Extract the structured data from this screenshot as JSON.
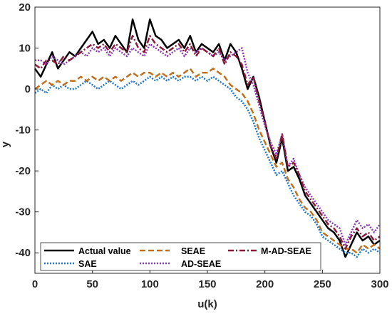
{
  "chart_data": {
    "type": "line",
    "xlabel": "u(k)",
    "ylabel": "y",
    "xlim": [
      0,
      300
    ],
    "ylim": [
      -45,
      20
    ],
    "xticks": [
      0,
      50,
      100,
      150,
      200,
      250,
      300
    ],
    "yticks": [
      -40,
      -30,
      -20,
      -10,
      0,
      10,
      20
    ],
    "grid": false,
    "legend_position": "bottom-left",
    "x": [
      0,
      5,
      10,
      15,
      20,
      25,
      30,
      35,
      40,
      45,
      50,
      55,
      60,
      65,
      70,
      75,
      80,
      85,
      90,
      95,
      100,
      105,
      110,
      115,
      120,
      125,
      130,
      135,
      140,
      145,
      150,
      155,
      160,
      165,
      170,
      175,
      180,
      185,
      190,
      195,
      200,
      205,
      210,
      215,
      220,
      225,
      230,
      235,
      240,
      245,
      250,
      255,
      260,
      265,
      270,
      275,
      280,
      285,
      290,
      295,
      300
    ],
    "series": [
      {
        "name": "Actual value",
        "color": "#000000",
        "dash": "solid",
        "values": [
          5,
          3,
          6,
          9,
          5,
          7,
          9,
          8,
          10,
          12,
          14,
          11,
          12,
          10,
          13,
          11,
          9,
          17,
          12,
          10,
          17,
          13,
          12,
          10,
          11,
          12,
          10,
          13,
          9,
          11,
          10,
          9,
          11,
          7,
          11,
          9,
          5,
          0,
          3,
          -2,
          -8,
          -14,
          -18,
          -12,
          -20,
          -19,
          -22,
          -26,
          -28,
          -30,
          -32,
          -34,
          -35,
          -37,
          -41,
          -38,
          -35,
          -37,
          -36,
          -38,
          -37
        ]
      },
      {
        "name": "SAE",
        "color": "#1f77d0",
        "dash": "dotted",
        "values": [
          -1,
          0,
          -1,
          1,
          0,
          1,
          0,
          0,
          1,
          2,
          1,
          0,
          1,
          2,
          1,
          0,
          1,
          2,
          1,
          2,
          3,
          2,
          3,
          2,
          3,
          2,
          3,
          3,
          2,
          3,
          2,
          3,
          2,
          1,
          0,
          -2,
          -3,
          -5,
          -8,
          -12,
          -15,
          -18,
          -21,
          -20,
          -23,
          -26,
          -28,
          -30,
          -31,
          -33,
          -36,
          -37,
          -38,
          -39,
          -40,
          -40,
          -41,
          -39,
          -40,
          -39,
          -40
        ]
      },
      {
        "name": "SEAE",
        "color": "#c0701c",
        "dash": "dashed",
        "values": [
          0,
          1,
          2,
          1,
          2,
          1,
          2,
          2,
          3,
          2,
          3,
          2,
          3,
          2,
          3,
          2,
          3,
          4,
          3,
          4,
          4,
          3,
          4,
          3,
          4,
          3,
          4,
          5,
          3,
          4,
          4,
          5,
          4,
          3,
          1,
          0,
          -1,
          -3,
          -6,
          -10,
          -13,
          -16,
          -19,
          -18,
          -22,
          -24,
          -27,
          -29,
          -30,
          -32,
          -35,
          -36,
          -37,
          -38,
          -39,
          -39,
          -40,
          -38,
          -39,
          -38,
          -39
        ]
      },
      {
        "name": "AD-SEAE",
        "color": "#8a3ab9",
        "dash": "dotted",
        "values": [
          7,
          7,
          6,
          8,
          7,
          6,
          7,
          8,
          9,
          8,
          10,
          9,
          10,
          8,
          10,
          9,
          8,
          10,
          9,
          8,
          11,
          10,
          9,
          8,
          9,
          10,
          8,
          10,
          9,
          10,
          9,
          8,
          9,
          7,
          8,
          9,
          10,
          4,
          1,
          -4,
          -9,
          -13,
          -16,
          -11,
          -19,
          -17,
          -21,
          -24,
          -26,
          -28,
          -30,
          -32,
          -33,
          -34,
          -38,
          -35,
          -32,
          -34,
          -33,
          -35,
          -33
        ]
      },
      {
        "name": "M-AD-SEAE",
        "color": "#8b1a3a",
        "dash": "dashdot",
        "values": [
          6,
          5,
          7,
          7,
          6,
          8,
          7,
          8,
          9,
          10,
          11,
          10,
          11,
          9,
          11,
          10,
          9,
          13,
          10,
          9,
          13,
          11,
          10,
          9,
          10,
          11,
          9,
          11,
          8,
          10,
          9,
          8,
          10,
          6,
          9,
          8,
          6,
          1,
          3,
          -3,
          -8,
          -14,
          -17,
          -11,
          -19,
          -18,
          -21,
          -25,
          -27,
          -29,
          -31,
          -33,
          -34,
          -36,
          -39,
          -36,
          -34,
          -36,
          -35,
          -37,
          -36
        ]
      }
    ]
  },
  "legend": {
    "actual_label": "Actual value",
    "sae_label": "SAE",
    "seae_label": "SEAE",
    "adseae_label": "AD-SEAE",
    "madseae_label": "M-AD-SEAE"
  },
  "axis": {
    "xlabel": "u(k)",
    "ylabel": "y"
  }
}
